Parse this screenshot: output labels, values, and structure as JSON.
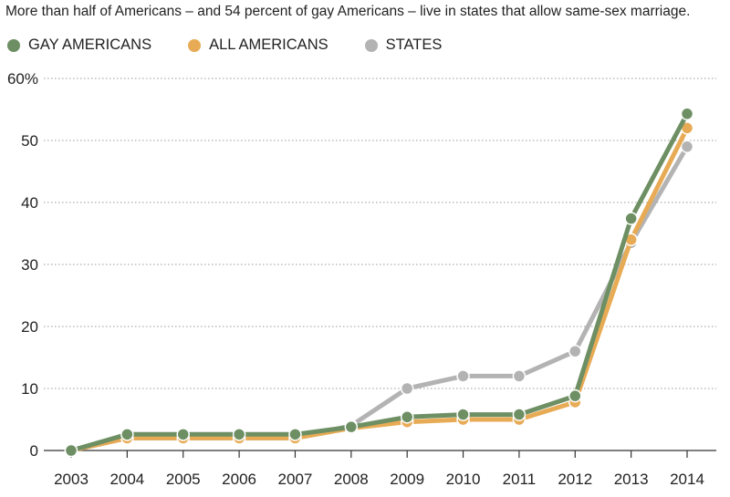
{
  "chart_data": {
    "type": "line",
    "title": "More than half of Americans – and 54 percent of gay Americans – live in states that allow same-sex marriage.",
    "xlabel": "",
    "ylabel": "",
    "categories": [
      "2003",
      "2004",
      "2005",
      "2006",
      "2007",
      "2008",
      "2009",
      "2010",
      "2011",
      "2012",
      "2013",
      "2014"
    ],
    "y_tick_labels": [
      "0",
      "10",
      "20",
      "30",
      "40",
      "50",
      "60%"
    ],
    "y_ticks": [
      0,
      10,
      20,
      30,
      40,
      50,
      60
    ],
    "ylim": [
      0,
      60
    ],
    "grid": true,
    "legend_position": "top-left",
    "series": [
      {
        "name": "STATES",
        "color": "#b3b3b3",
        "values": [
          0,
          2,
          2,
          2,
          2,
          4,
          10,
          12,
          12,
          16,
          33.5,
          49
        ]
      },
      {
        "name": "ALL AMERICANS",
        "color": "#e8ab55",
        "values": [
          0,
          2,
          2,
          2,
          2,
          3.6,
          4.6,
          5,
          5,
          7.8,
          34,
          52
        ]
      },
      {
        "name": "GAY AMERICANS",
        "color": "#6d8f63",
        "values": [
          0,
          2.6,
          2.6,
          2.6,
          2.6,
          3.8,
          5.4,
          5.8,
          5.8,
          8.8,
          37.4,
          54.3
        ]
      }
    ],
    "legend_order": [
      "GAY AMERICANS",
      "ALL AMERICANS",
      "STATES"
    ]
  }
}
